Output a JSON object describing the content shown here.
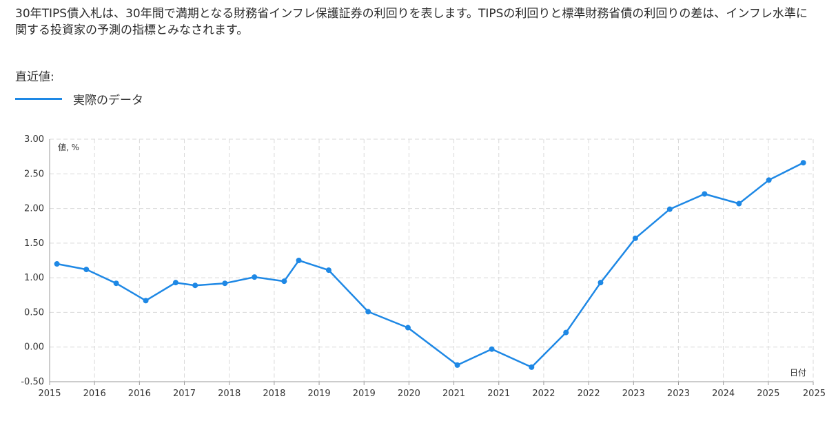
{
  "description": "30年TIPS債入札は、30年間で満期となる財務省インフレ保護証券の利回りを表します。TIPSの利回りと標準財務省債の利回りの差は、インフレ水準に関する投資家の予測の指標とみなされます。",
  "latest_label": "直近値:",
  "legend": {
    "label": "実際のデータ",
    "color": "#1e88e5"
  },
  "chart_data": {
    "type": "line",
    "ylabel": "値, %",
    "xlabel": "日付",
    "ylim": [
      -0.5,
      3.0
    ],
    "y_ticks": [
      "3.00",
      "2.50",
      "2.00",
      "1.50",
      "1.00",
      "0.50",
      "0.00",
      "-0.50"
    ],
    "x_ticks": [
      "2015",
      "2016",
      "2016",
      "2017",
      "2018",
      "2018",
      "2019",
      "2019",
      "2020",
      "2021",
      "2021",
      "2022",
      "2022",
      "2023",
      "2023",
      "2024",
      "2025",
      "2025"
    ],
    "grid": true,
    "series": [
      {
        "name": "実際のデータ",
        "color": "#1e88e5",
        "points": [
          {
            "x": "2015-02",
            "y": 1.2
          },
          {
            "x": "2015-08",
            "y": 1.12
          },
          {
            "x": "2016-02",
            "y": 0.92
          },
          {
            "x": "2016-08",
            "y": 0.67
          },
          {
            "x": "2017-02",
            "y": 0.93
          },
          {
            "x": "2017-06",
            "y": 0.89
          },
          {
            "x": "2017-12",
            "y": 0.92
          },
          {
            "x": "2018-06",
            "y": 1.01
          },
          {
            "x": "2018-12",
            "y": 0.95
          },
          {
            "x": "2019-03",
            "y": 1.25
          },
          {
            "x": "2019-09",
            "y": 1.11
          },
          {
            "x": "2020-05",
            "y": 0.51
          },
          {
            "x": "2021-01",
            "y": 0.28
          },
          {
            "x": "2021-11",
            "y": -0.26
          },
          {
            "x": "2022-06",
            "y": -0.03
          },
          {
            "x": "2023-02",
            "y": -0.29
          },
          {
            "x": "2023-09",
            "y": 0.21
          },
          {
            "x": "2024-04",
            "y": 0.93
          },
          {
            "x": "2024-11",
            "y": 1.57
          },
          {
            "x": "2025-06",
            "y": 1.99
          },
          {
            "x": "2026-01",
            "y": 2.21
          },
          {
            "x": "2026-08",
            "y": 2.07
          },
          {
            "x": "2027-02",
            "y": 2.41
          },
          {
            "x": "2027-09",
            "y": 2.66
          }
        ]
      }
    ]
  }
}
